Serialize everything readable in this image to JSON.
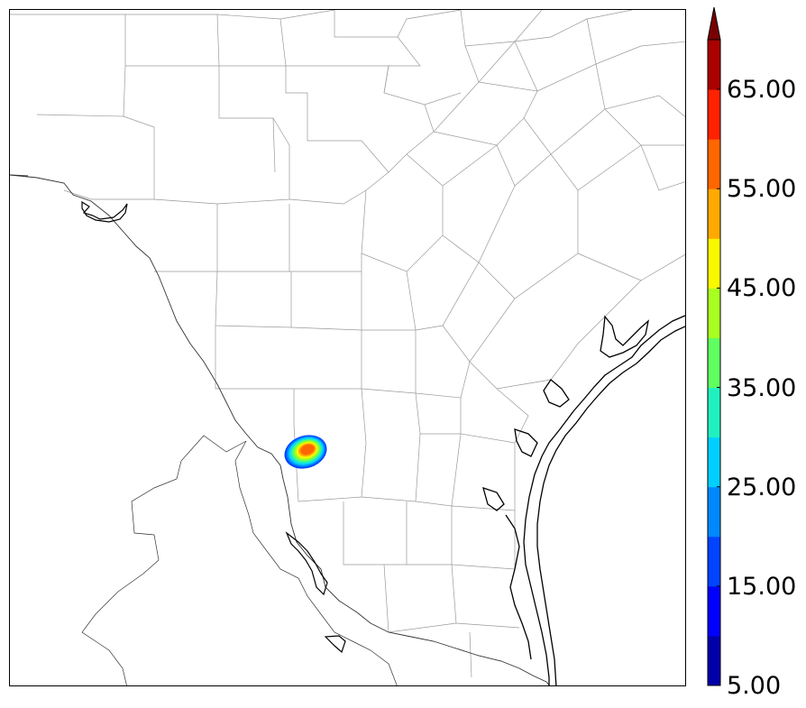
{
  "map": {
    "region": "South Texas / Mexico border with Gulf of Mexico coast",
    "field": {
      "description": "Single small radar reflectivity cell",
      "peak_level": "55-60",
      "levels_present": [
        "15-20",
        "20-25",
        "25-30",
        "30-35",
        "35-40",
        "40-45",
        "45-50",
        "50-55",
        "55-60"
      ]
    }
  },
  "colorbar": {
    "levels": [
      5,
      10,
      15,
      20,
      25,
      30,
      35,
      40,
      45,
      50,
      55,
      60,
      65,
      70
    ],
    "colors": [
      "#0000aa",
      "#0000ff",
      "#0044ff",
      "#0088ff",
      "#00d0ff",
      "#20f0c0",
      "#60ff60",
      "#a8ff20",
      "#f8f800",
      "#ffaa00",
      "#ff6600",
      "#ff2200",
      "#aa0000"
    ],
    "extend_color": "#7a0000",
    "extend": "max",
    "tick_labels": [
      "5.00",
      "15.00",
      "25.00",
      "35.00",
      "45.00",
      "55.00",
      "65.00"
    ]
  }
}
